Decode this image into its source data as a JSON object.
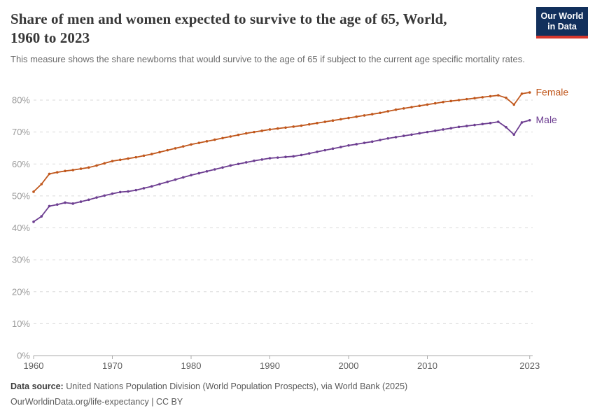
{
  "header": {
    "title": "Share of men and women expected to survive to the age of 65, World, 1960 to 2023",
    "title_line1": "Share of men and women expected to survive to the age of 65, World,",
    "title_line2": "1960 to 2023",
    "subtitle": "This measure shows the share newborns that would survive to the age of 65 if subject to the current age specific mortality rates.",
    "logo": {
      "line1": "Our World",
      "line2": "in Data",
      "bg_color": "#12305c",
      "bar_color": "#d6372d"
    }
  },
  "footer": {
    "source_label": "Data source:",
    "source_text": "United Nations Population Division (World Population Prospects), via World Bank (2025)",
    "link_line": "OurWorldinData.org/life-expectancy | CC BY"
  },
  "chart_data": {
    "type": "line",
    "title": "Share of men and women expected to survive to the age of 65, World, 1960 to 2023",
    "xlabel": "",
    "ylabel": "",
    "ylim": [
      0,
      80
    ],
    "yticks": [
      0,
      10,
      20,
      30,
      40,
      50,
      60,
      70,
      80
    ],
    "ytick_suffix": "%",
    "xticks": [
      1960,
      1970,
      1980,
      1990,
      2000,
      2010,
      2023
    ],
    "grid": "horizontal-dashed",
    "legend_position": "end-of-line",
    "grid_color": "#dadada",
    "axis_color": "#ababab",
    "ytick_label_color": "#9b9b9b",
    "xtick_label_color": "#5e5e5e",
    "years": [
      1960,
      1961,
      1962,
      1963,
      1964,
      1965,
      1966,
      1967,
      1968,
      1969,
      1970,
      1971,
      1972,
      1973,
      1974,
      1975,
      1976,
      1977,
      1978,
      1979,
      1980,
      1981,
      1982,
      1983,
      1984,
      1985,
      1986,
      1987,
      1988,
      1989,
      1990,
      1991,
      1992,
      1993,
      1994,
      1995,
      1996,
      1997,
      1998,
      1999,
      2000,
      2001,
      2002,
      2003,
      2004,
      2005,
      2006,
      2007,
      2008,
      2009,
      2010,
      2011,
      2012,
      2013,
      2014,
      2015,
      2016,
      2017,
      2018,
      2019,
      2020,
      2021,
      2022,
      2023
    ],
    "series": [
      {
        "name": "Female",
        "color": "#c0571c",
        "values": [
          51.3,
          53.7,
          56.9,
          57.4,
          57.8,
          58.1,
          58.5,
          58.9,
          59.5,
          60.2,
          60.9,
          61.3,
          61.7,
          62.1,
          62.6,
          63.1,
          63.7,
          64.3,
          64.9,
          65.5,
          66.1,
          66.6,
          67.1,
          67.6,
          68.1,
          68.6,
          69.1,
          69.6,
          70.0,
          70.4,
          70.8,
          71.1,
          71.4,
          71.7,
          72.0,
          72.4,
          72.8,
          73.2,
          73.6,
          74.0,
          74.4,
          74.8,
          75.2,
          75.6,
          76.0,
          76.5,
          77.0,
          77.4,
          77.8,
          78.2,
          78.6,
          79.0,
          79.4,
          79.7,
          80.0,
          80.3,
          80.6,
          80.9,
          81.2,
          81.5,
          80.7,
          78.6,
          82.0,
          82.4
        ]
      },
      {
        "name": "Male",
        "color": "#6d3e91",
        "values": [
          41.9,
          43.6,
          46.8,
          47.3,
          47.9,
          47.6,
          48.2,
          48.8,
          49.5,
          50.1,
          50.7,
          51.2,
          51.4,
          51.8,
          52.4,
          53.0,
          53.7,
          54.4,
          55.1,
          55.8,
          56.5,
          57.1,
          57.7,
          58.3,
          58.9,
          59.5,
          60.0,
          60.5,
          61.0,
          61.4,
          61.8,
          62.0,
          62.2,
          62.4,
          62.8,
          63.3,
          63.8,
          64.3,
          64.8,
          65.3,
          65.8,
          66.2,
          66.6,
          67.0,
          67.5,
          68.0,
          68.4,
          68.8,
          69.2,
          69.6,
          70.0,
          70.4,
          70.8,
          71.2,
          71.6,
          71.9,
          72.2,
          72.5,
          72.8,
          73.2,
          71.5,
          69.2,
          73.0,
          73.7
        ]
      }
    ]
  }
}
